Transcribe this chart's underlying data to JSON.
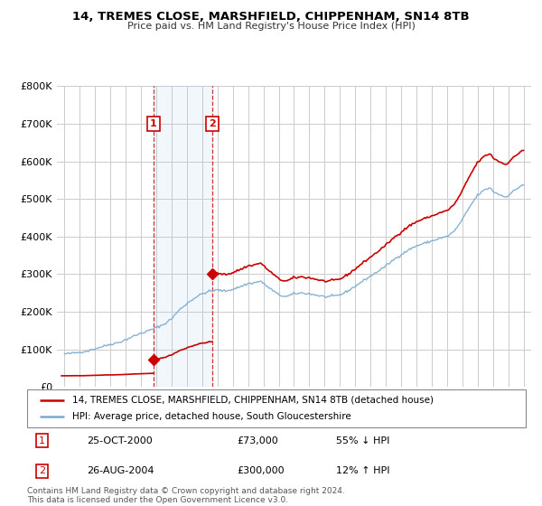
{
  "title": "14, TREMES CLOSE, MARSHFIELD, CHIPPENHAM, SN14 8TB",
  "subtitle": "Price paid vs. HM Land Registry's House Price Index (HPI)",
  "legend_line1": "14, TREMES CLOSE, MARSHFIELD, CHIPPENHAM, SN14 8TB (detached house)",
  "legend_line2": "HPI: Average price, detached house, South Gloucestershire",
  "transaction1_date": "25-OCT-2000",
  "transaction1_price": "£73,000",
  "transaction1_hpi": "55% ↓ HPI",
  "transaction1_year": 2000.82,
  "transaction1_value": 73000,
  "transaction2_date": "26-AUG-2004",
  "transaction2_price": "£300,000",
  "transaction2_hpi": "12% ↑ HPI",
  "transaction2_year": 2004.65,
  "transaction2_value": 300000,
  "footer": "Contains HM Land Registry data © Crown copyright and database right 2024.\nThis data is licensed under the Open Government Licence v3.0.",
  "ylim": [
    0,
    800000
  ],
  "xlim": [
    1994.5,
    2025.5
  ],
  "background_color": "#ffffff",
  "grid_color": "#cccccc",
  "red_color": "#cc0000",
  "blue_color": "#7aaad0",
  "span_color": "#ddeeff"
}
